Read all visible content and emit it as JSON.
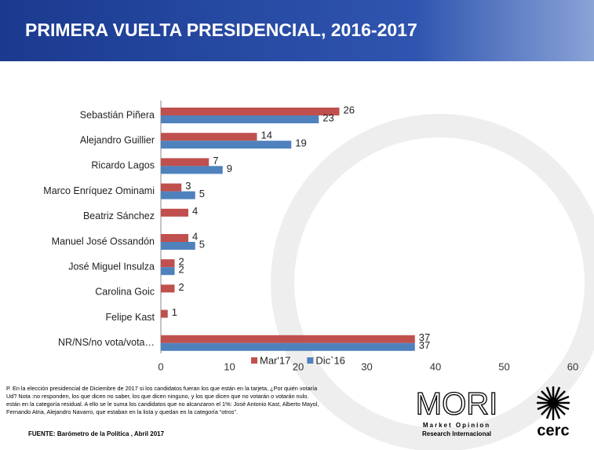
{
  "chart_data": {
    "type": "bar",
    "orientation": "horizontal",
    "title": "PRIMERA VUELTA PRESIDENCIAL, 2016-2017",
    "categories": [
      "Sebastián Piñera",
      "Alejandro Guillier",
      "Ricardo Lagos",
      "Marco Enríquez Ominami",
      "Beatriz Sánchez",
      "Manuel José Ossandón",
      "José Miguel Insulza",
      "Carolina Goic",
      "Felipe Kast",
      "NR/NS/no vota/vota…"
    ],
    "series": [
      {
        "name": "Mar'17",
        "color": "#c0504d",
        "values": [
          26,
          14,
          7,
          3,
          4,
          4,
          2,
          2,
          1,
          37
        ]
      },
      {
        "name": "Dic`16",
        "color": "#4f81bd",
        "values": [
          23,
          19,
          9,
          5,
          null,
          5,
          2,
          null,
          null,
          37
        ]
      }
    ],
    "xlim": [
      0,
      60
    ],
    "xticks": [
      0,
      10,
      20,
      30,
      40,
      50,
      60
    ],
    "grid": false,
    "legend": "bottom"
  },
  "footnote": [
    "P. En la elección presidencial de Diciembre de 2017 si los candidatos fueran los que están en la tarjeta, ¿Por quién votaría",
    "Ud? Nota :no responden, los que dicen no saber, los que dicen ninguno, y los que dicen que no votarán o votarán nulo.",
    "están en la categoría residual. A ello se le suma los candidatos que no alcanzaron el 1%: José Antonio Kast, Alberto Mayol,",
    "Fernando Atria, Alejandro Navarro, que estaban en la lista  y quedan en la categoría “otros”."
  ],
  "source": "FUENTE: Barómetro de la Política , Abril 2017",
  "logos": {
    "mori": "MORI",
    "mori_line1": "Market Opinion",
    "mori_line2": "Research Internacional",
    "cerc": "cerc"
  }
}
